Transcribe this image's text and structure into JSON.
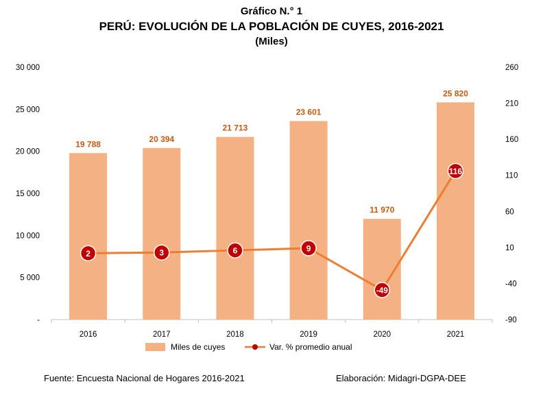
{
  "title": {
    "line1": "Gráfico N.° 1",
    "line2": "PERÚ: EVOLUCIÓN DE LA POBLACIÓN DE CUYES, 2016-2021",
    "line3": "(Miles)"
  },
  "chart_data": {
    "type": "bar",
    "categories": [
      "2016",
      "2017",
      "2018",
      "2019",
      "2020",
      "2021"
    ],
    "series": [
      {
        "name": "Miles de cuyes",
        "type": "bar",
        "axis": "left",
        "values": [
          19788,
          20394,
          21713,
          23601,
          11970,
          25820
        ],
        "labels": [
          "19 788",
          "20 394",
          "21 713",
          "23 601",
          "11 970",
          "25 820"
        ],
        "color": "#F4B183"
      },
      {
        "name": "Var. % promedio anual",
        "type": "line",
        "axis": "right",
        "values": [
          2,
          3,
          6,
          9,
          -49,
          116
        ],
        "labels": [
          "2",
          "3",
          "6",
          "9",
          "-49",
          "116"
        ],
        "color": "#ED7D31",
        "marker_color": "#C00000"
      }
    ],
    "y_left": {
      "lim": [
        0,
        30000
      ],
      "ticks": [
        0,
        5000,
        10000,
        15000,
        20000,
        25000,
        30000
      ],
      "tick_labels": [
        "-",
        "5 000",
        "10 000",
        "15 000",
        "20 000",
        "25 000",
        "30 000"
      ]
    },
    "y_right": {
      "lim": [
        -90,
        260
      ],
      "ticks": [
        -90,
        -40,
        10,
        60,
        110,
        160,
        210,
        260
      ],
      "tick_labels": [
        "-90",
        "-40",
        "10",
        "60",
        "110",
        "160",
        "210",
        "260"
      ]
    },
    "grid": false,
    "legend": "bottom",
    "label_color": "#C55A11"
  },
  "footer": {
    "source": "Fuente: Encuesta Nacional de Hogares 2016-2021",
    "credit": "Elaboración: Midagri-DGPA-DEE"
  }
}
